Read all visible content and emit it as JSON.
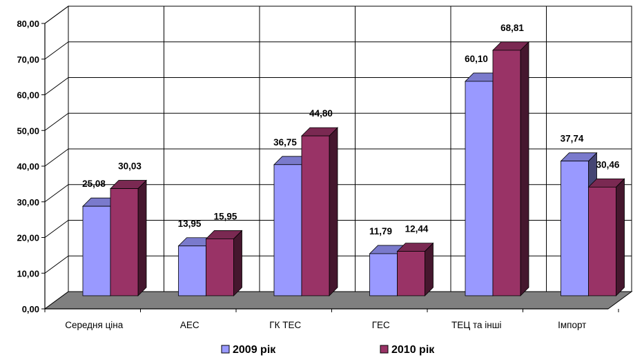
{
  "chart_data": {
    "type": "bar",
    "style": "3d-clustered-column",
    "categories": [
      "Середня ціна",
      "АЕС",
      "ГК ТЕС",
      "ГЕС",
      "ТЕЦ та інші",
      "Імпорт"
    ],
    "series": [
      {
        "name": "2009 рік",
        "values": [
          25.08,
          13.95,
          36.75,
          11.79,
          60.1,
          37.74
        ],
        "labels": [
          "25,08",
          "13,95",
          "36,75",
          "11,79",
          "60,10",
          "37,74"
        ],
        "color": "#9999ff"
      },
      {
        "name": "2010 рік",
        "values": [
          30.03,
          15.95,
          44.8,
          12.44,
          68.81,
          30.46
        ],
        "labels": [
          "30,03",
          "15,95",
          "44,80",
          "12,44",
          "68,81",
          "30,46"
        ],
        "color": "#993366"
      }
    ],
    "yticks": [
      0,
      10,
      20,
      30,
      40,
      50,
      60,
      70,
      80
    ],
    "ytick_labels": [
      "0,00",
      "10,00",
      "20,00",
      "30,00",
      "40,00",
      "50,00",
      "60,00",
      "70,00",
      "80,00"
    ],
    "ylim": [
      0,
      80
    ],
    "grid": true,
    "legend": "bottom",
    "colors": {
      "floor": "#808080",
      "wall": "#ffffff",
      "grid": "#000000"
    }
  }
}
